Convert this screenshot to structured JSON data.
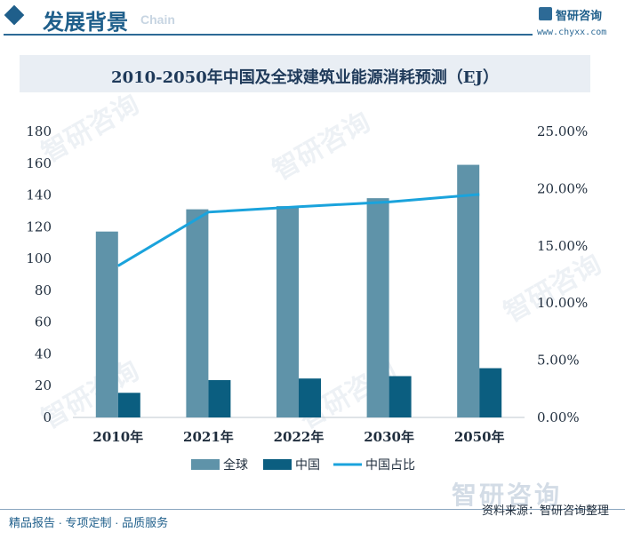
{
  "header": {
    "title": "发展背景",
    "subtitle": "Chain",
    "logo_name": "智研咨询",
    "logo_url": "www.chyxx.com"
  },
  "watermark": {
    "text": "智研咨询"
  },
  "footer": {
    "left_text": "精品报告 · 专项定制 · 品质服务",
    "source": "资料来源：智研咨询整理"
  },
  "colors": {
    "global_bar": "#5f93a9",
    "china_bar": "#0b5e80",
    "line": "#1aa3dc",
    "brand": "#1f5f8b"
  },
  "chart_data": {
    "type": "bar",
    "title": "2010-2050年中国及全球建筑业能源消耗预测（EJ）",
    "categories": [
      "2010年",
      "2021年",
      "2022年",
      "2030年",
      "2050年"
    ],
    "series": [
      {
        "name": "全球",
        "type": "bar",
        "axis": "left",
        "values": [
          117,
          131,
          133,
          138,
          159
        ]
      },
      {
        "name": "中国",
        "type": "bar",
        "axis": "left",
        "values": [
          15.5,
          23.5,
          24.5,
          26,
          31
        ]
      },
      {
        "name": "中国占比",
        "type": "line",
        "axis": "right",
        "values": [
          0.1325,
          0.1795,
          0.1842,
          0.1884,
          0.195
        ]
      }
    ],
    "y_left": {
      "min": 0,
      "max": 180,
      "ticks": [
        "0",
        "20",
        "40",
        "60",
        "80",
        "100",
        "120",
        "140",
        "160",
        "180"
      ]
    },
    "y_right": {
      "min": 0,
      "max": 0.25,
      "ticks": [
        "0.00%",
        "5.00%",
        "10.00%",
        "15.00%",
        "20.00%",
        "25.00%"
      ]
    },
    "legend_position": "bottom-center",
    "grid": false
  }
}
